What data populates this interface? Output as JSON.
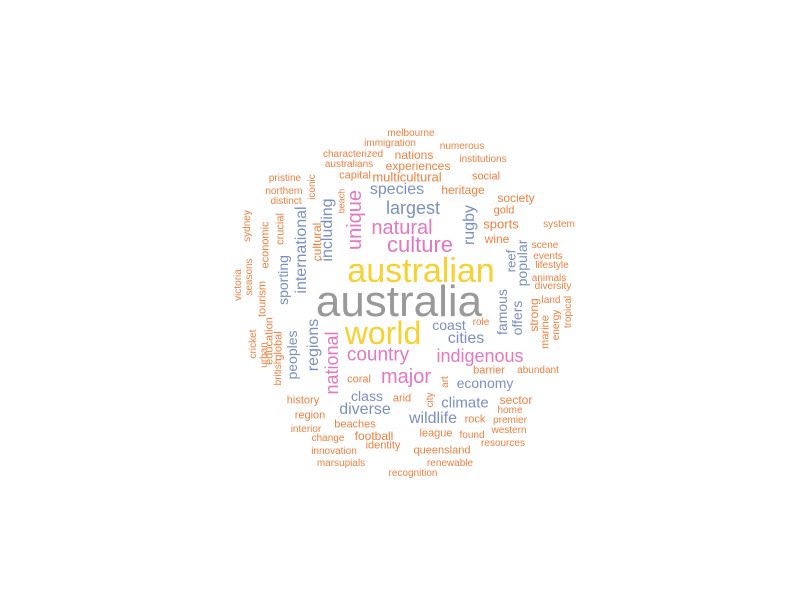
{
  "palette": {
    "c1": "#999999",
    "c2": "#f8d030",
    "c3": "#e377c2",
    "c4": "#7b8fc4",
    "c5": "#f08040"
  },
  "words": [
    {
      "text": "australia",
      "color": "c1"
    },
    {
      "text": "australian",
      "color": "c2"
    },
    {
      "text": "world",
      "color": "c2"
    },
    {
      "text": "culture",
      "color": "c3"
    },
    {
      "text": "natural",
      "color": "c3"
    },
    {
      "text": "major",
      "color": "c3"
    },
    {
      "text": "country",
      "color": "c3"
    },
    {
      "text": "indigenous",
      "color": "c3"
    },
    {
      "text": "unique",
      "color": "c3"
    },
    {
      "text": "national",
      "color": "c3"
    },
    {
      "text": "largest",
      "color": "c4"
    },
    {
      "text": "species",
      "color": "c4"
    },
    {
      "text": "including",
      "color": "c4"
    },
    {
      "text": "international",
      "color": "c4"
    },
    {
      "text": "cities",
      "color": "c4"
    },
    {
      "text": "regions",
      "color": "c4"
    },
    {
      "text": "rugby",
      "color": "c4"
    },
    {
      "text": "coast",
      "color": "c4"
    },
    {
      "text": "economy",
      "color": "c4"
    },
    {
      "text": "diverse",
      "color": "c4"
    },
    {
      "text": "wildlife",
      "color": "c4"
    },
    {
      "text": "climate",
      "color": "c4"
    },
    {
      "text": "class",
      "color": "c4"
    },
    {
      "text": "peoples",
      "color": "c4"
    },
    {
      "text": "sporting",
      "color": "c4"
    },
    {
      "text": "famous",
      "color": "c4"
    },
    {
      "text": "offers",
      "color": "c4"
    },
    {
      "text": "popular",
      "color": "c4"
    },
    {
      "text": "reef",
      "color": "c4"
    },
    {
      "text": "multicultural",
      "color": "c5"
    },
    {
      "text": "heritage",
      "color": "c5"
    },
    {
      "text": "capital",
      "color": "c5"
    },
    {
      "text": "nations",
      "color": "c5"
    },
    {
      "text": "experiences",
      "color": "c5"
    },
    {
      "text": "society",
      "color": "c5"
    },
    {
      "text": "gold",
      "color": "c5"
    },
    {
      "text": "sports",
      "color": "c5"
    },
    {
      "text": "wine",
      "color": "c5"
    },
    {
      "text": "social",
      "color": "c5"
    },
    {
      "text": "strong",
      "color": "c5"
    },
    {
      "text": "marine",
      "color": "c5"
    },
    {
      "text": "sector",
      "color": "c5"
    },
    {
      "text": "barrier",
      "color": "c5"
    },
    {
      "text": "coral",
      "color": "c5"
    },
    {
      "text": "arid",
      "color": "c5"
    },
    {
      "text": "history",
      "color": "c5"
    },
    {
      "text": "region",
      "color": "c5"
    },
    {
      "text": "beaches",
      "color": "c5"
    },
    {
      "text": "football",
      "color": "c5"
    },
    {
      "text": "league",
      "color": "c5"
    },
    {
      "text": "rock",
      "color": "c5"
    },
    {
      "text": "identity",
      "color": "c5"
    },
    {
      "text": "queensland",
      "color": "c5"
    },
    {
      "text": "cultural",
      "color": "c5"
    },
    {
      "text": "tourism",
      "color": "c5"
    },
    {
      "text": "economic",
      "color": "c5"
    },
    {
      "text": "crucial",
      "color": "c5"
    },
    {
      "text": "education",
      "color": "c5"
    },
    {
      "text": "global",
      "color": "c5"
    },
    {
      "text": "melbourne",
      "color": "c5"
    },
    {
      "text": "immigration",
      "color": "c5"
    },
    {
      "text": "numerous",
      "color": "c5"
    },
    {
      "text": "characterized",
      "color": "c5"
    },
    {
      "text": "australians",
      "color": "c5"
    },
    {
      "text": "institutions",
      "color": "c5"
    },
    {
      "text": "pristine",
      "color": "c5"
    },
    {
      "text": "northern",
      "color": "c5"
    },
    {
      "text": "distinct",
      "color": "c5"
    },
    {
      "text": "iconic",
      "color": "c5"
    },
    {
      "text": "beach",
      "color": "c5"
    },
    {
      "text": "sydney",
      "color": "c5"
    },
    {
      "text": "seasons",
      "color": "c5"
    },
    {
      "text": "victoria",
      "color": "c5"
    },
    {
      "text": "cricket",
      "color": "c5"
    },
    {
      "text": "british",
      "color": "c5"
    },
    {
      "text": "urban",
      "color": "c5"
    },
    {
      "text": "system",
      "color": "c5"
    },
    {
      "text": "scene",
      "color": "c5"
    },
    {
      "text": "events",
      "color": "c5"
    },
    {
      "text": "lifestyle",
      "color": "c5"
    },
    {
      "text": "animals",
      "color": "c5"
    },
    {
      "text": "diversity",
      "color": "c5"
    },
    {
      "text": "land",
      "color": "c5"
    },
    {
      "text": "tropical",
      "color": "c5"
    },
    {
      "text": "energy",
      "color": "c5"
    },
    {
      "text": "role",
      "color": "c5"
    },
    {
      "text": "abundant",
      "color": "c5"
    },
    {
      "text": "art",
      "color": "c5"
    },
    {
      "text": "city",
      "color": "c5"
    },
    {
      "text": "home",
      "color": "c5"
    },
    {
      "text": "premier",
      "color": "c5"
    },
    {
      "text": "western",
      "color": "c5"
    },
    {
      "text": "resources",
      "color": "c5"
    },
    {
      "text": "found",
      "color": "c5"
    },
    {
      "text": "interior",
      "color": "c5"
    },
    {
      "text": "change",
      "color": "c5"
    },
    {
      "text": "innovation",
      "color": "c5"
    },
    {
      "text": "marsupials",
      "color": "c5"
    },
    {
      "text": "renewable",
      "color": "c5"
    },
    {
      "text": "recognition",
      "color": "c5"
    }
  ]
}
